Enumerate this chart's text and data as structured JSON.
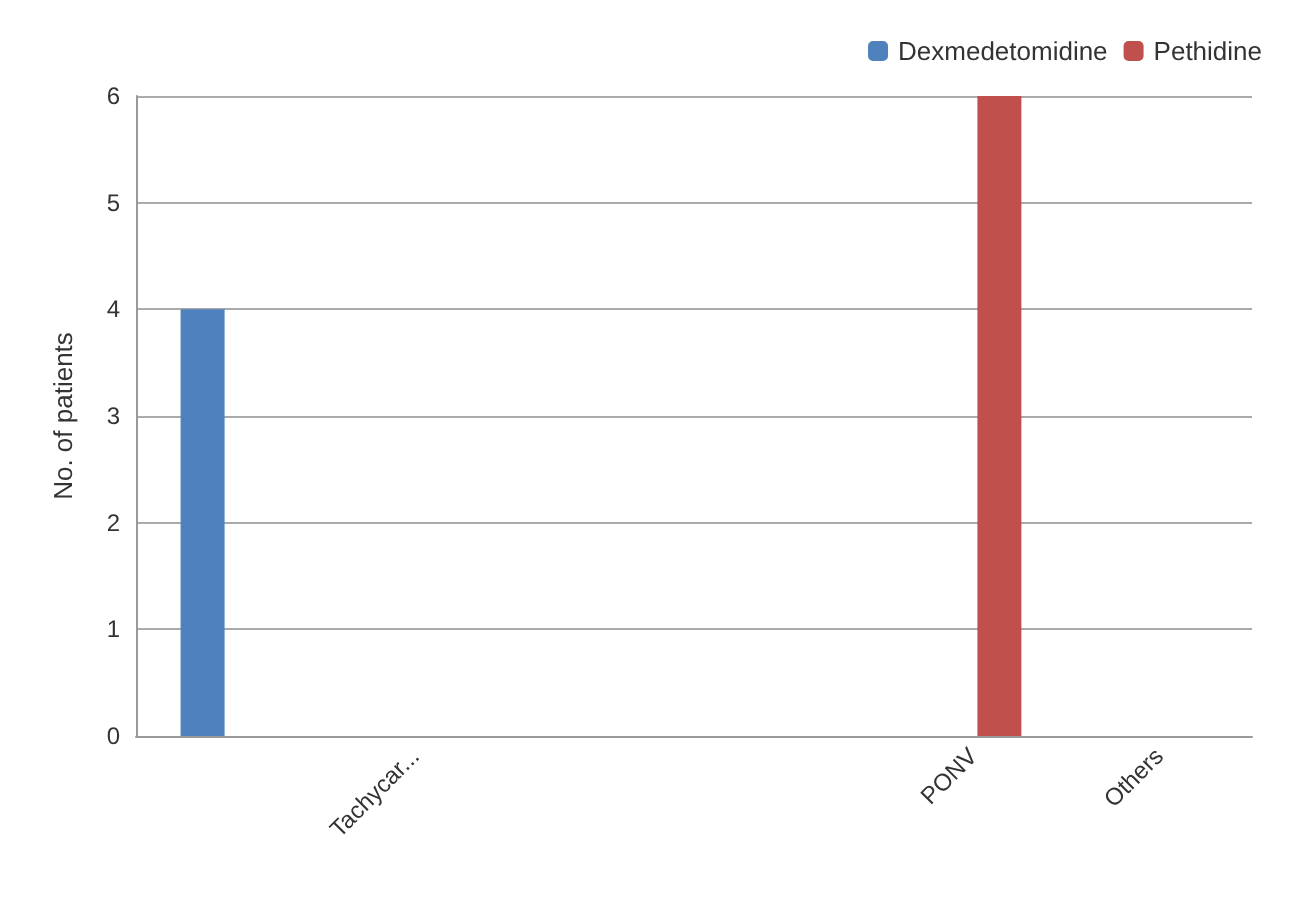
{
  "chart_data": {
    "type": "bar",
    "ylabel": "No. of patients",
    "categories": [
      null,
      "Tachycar...",
      null,
      null,
      "PONV",
      "Others"
    ],
    "series": [
      {
        "name": "Dexmedetomidine",
        "color": "#4f81bd",
        "values": [
          4,
          0,
          0,
          0,
          0,
          0
        ]
      },
      {
        "name": "Pethidine",
        "color": "#c0504d",
        "values": [
          0,
          0,
          0,
          0,
          6,
          0
        ]
      }
    ],
    "ylim": [
      0,
      6
    ],
    "yticks": [
      0,
      1,
      2,
      3,
      4,
      5,
      6
    ],
    "grid": "y",
    "legend": "top right"
  }
}
